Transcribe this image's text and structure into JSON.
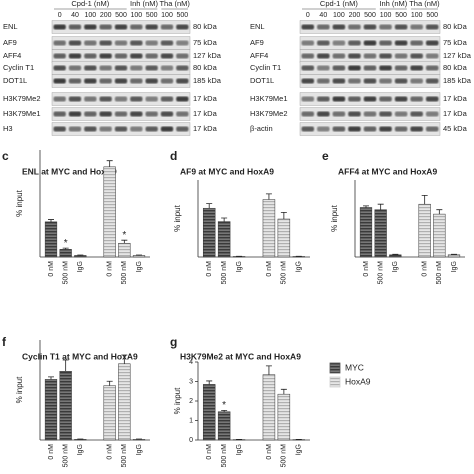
{
  "blots": [
    {
      "groups": [
        "Cpd-1 (nM)",
        "Inh (nM)",
        "Tha (nM)"
      ],
      "lanes": [
        "0",
        "40",
        "100",
        "200",
        "500",
        "100",
        "500",
        "100",
        "500"
      ],
      "rows": [
        {
          "protein": "ENL",
          "size": "80 kDa"
        },
        {
          "protein": "AF9",
          "size": "75 kDa"
        },
        {
          "protein": "AFF4",
          "size": "127 kDa"
        },
        {
          "protein": "Cyclin T1",
          "size": "80 kDa"
        },
        {
          "protein": "DOT1L",
          "size": "185 kDa"
        },
        {
          "protein": "H3K79Me2",
          "size": "17 kDa"
        },
        {
          "protein": "H3K79Me1",
          "size": "17 kDa"
        },
        {
          "protein": "H3",
          "size": "17 kDa"
        }
      ]
    },
    {
      "groups": [
        "Cpd-1 (nM)",
        "Inh (nM)",
        "Tha (nM)"
      ],
      "lanes": [
        "0",
        "40",
        "100",
        "200",
        "500",
        "100",
        "500",
        "100",
        "500"
      ],
      "rows": [
        {
          "protein": "ENL",
          "size": "80 kDa"
        },
        {
          "protein": "AF9",
          "size": "75 kDa"
        },
        {
          "protein": "AFF4",
          "size": "127 kDa"
        },
        {
          "protein": "Cyclin T1",
          "size": "80 kDa"
        },
        {
          "protein": "DOT1L",
          "size": "185 kDa"
        },
        {
          "protein": "H3K79Me1",
          "size": "17 kDa"
        },
        {
          "protein": "H3K79Me2",
          "size": "17 kDa"
        },
        {
          "protein": "β-actin",
          "size": "45 kDa"
        }
      ]
    }
  ],
  "legend": [
    {
      "name": "MYC",
      "color": "#555555"
    },
    {
      "name": "HoxA9",
      "color": "#cfcfcf"
    }
  ],
  "chart_data": [
    {
      "type": "bar",
      "letter": "c",
      "title": "ENL at MYC and HoxA9",
      "ylabel": "% input",
      "categories": [
        "0 nM",
        "500 nM",
        "IgG"
      ],
      "ylim": [
        0,
        0.7
      ],
      "series": [
        {
          "values": [
            0.23,
            0.05,
            0.01
          ],
          "errors": [
            0.015,
            0.008,
            0.003
          ]
        },
        {
          "values": [
            0.59,
            0.09,
            0.01
          ],
          "errors": [
            0.04,
            0.02,
            0.003
          ]
        }
      ],
      "annotations": [
        {
          "text": "*",
          "series": "MYC",
          "at": "500 nM"
        },
        {
          "text": "*",
          "series": "HoxA9",
          "at": "500 nM"
        }
      ]
    },
    {
      "type": "bar",
      "letter": "d",
      "title": "AF9 at MYC and HoxA9",
      "ylabel": "% input",
      "categories": [
        "0 nM",
        "500 nM",
        "IgG"
      ],
      "ylim": [
        0,
        1.5
      ],
      "series": [
        {
          "values": [
            0.95,
            0.69,
            0.01
          ],
          "errors": [
            0.09,
            0.07,
            0.005
          ]
        },
        {
          "values": [
            1.12,
            0.74,
            0.01
          ],
          "errors": [
            0.11,
            0.13,
            0.005
          ]
        }
      ]
    },
    {
      "type": "bar",
      "letter": "e",
      "title": "AFF4 at MYC and HoxA9",
      "ylabel": "% input",
      "categories": [
        "0 nM",
        "500 nM",
        "IgG"
      ],
      "ylim": [
        0,
        0.7
      ],
      "series": [
        {
          "values": [
            0.45,
            0.43,
            0.02
          ],
          "errors": [
            0.015,
            0.05,
            0.005
          ]
        },
        {
          "values": [
            0.48,
            0.39,
            0.02
          ],
          "errors": [
            0.08,
            0.04,
            0.005
          ]
        }
      ]
    },
    {
      "type": "bar",
      "letter": "f",
      "title": "Cyclin T1 at MYC and HoxA9",
      "ylabel": "% input",
      "categories": [
        "0 nM",
        "500 nM",
        "IgG"
      ],
      "ylim": [
        0,
        1.6
      ],
      "series": [
        {
          "values": [
            0.97,
            1.1,
            0.01
          ],
          "errors": [
            0.04,
            0.18,
            0.005
          ]
        },
        {
          "values": [
            0.87,
            1.22,
            0.01
          ],
          "errors": [
            0.07,
            0.14,
            0.005
          ]
        }
      ]
    },
    {
      "type": "bar",
      "letter": "g",
      "title": "H3K79Me2 at MYC and HoxA9",
      "ylabel": "% input",
      "categories": [
        "0 nM",
        "500 nM",
        "IgG"
      ],
      "ylim": [
        0,
        4
      ],
      "yticks": [
        0,
        1,
        2,
        3,
        4
      ],
      "series": [
        {
          "values": [
            2.85,
            1.45,
            0.02
          ],
          "errors": [
            0.18,
            0.07,
            0.01
          ]
        },
        {
          "values": [
            3.35,
            2.35,
            0.02
          ],
          "errors": [
            0.45,
            0.25,
            0.01
          ]
        }
      ],
      "annotations": [
        {
          "text": "*",
          "series": "MYC",
          "at": "500 nM"
        }
      ]
    }
  ]
}
